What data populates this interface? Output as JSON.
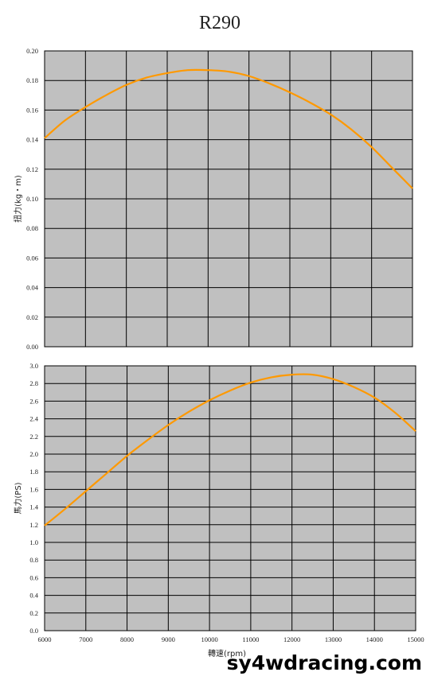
{
  "title": "R290",
  "watermark": "sy4wdracing.com",
  "colors": {
    "plot_bg": "#c0c0c0",
    "grid": "#000000",
    "line": "#ff9900"
  },
  "chart_data": [
    {
      "type": "line",
      "title": "",
      "xlabel": "",
      "ylabel": "扭力(kg・m)",
      "xlim": [
        6000,
        15000
      ],
      "ylim": [
        0,
        0.2
      ],
      "yticks": [
        "0.00",
        "0.02",
        "0.04",
        "0.06",
        "0.08",
        "0.10",
        "0.12",
        "0.14",
        "0.16",
        "0.18",
        "0.20"
      ],
      "xticks": [],
      "grid": true,
      "series": [
        {
          "x": [
            6000,
            6500,
            7000,
            7500,
            8000,
            8500,
            9000,
            9500,
            10000,
            10500,
            11000,
            11500,
            12000,
            12500,
            13000,
            13500,
            14000,
            14500,
            15000
          ],
          "y": [
            0.141,
            0.153,
            0.162,
            0.17,
            0.177,
            0.182,
            0.185,
            0.187,
            0.187,
            0.186,
            0.183,
            0.178,
            0.172,
            0.165,
            0.157,
            0.147,
            0.135,
            0.121,
            0.107
          ]
        }
      ]
    },
    {
      "type": "line",
      "title": "",
      "xlabel": "轉速(rpm)",
      "ylabel": "馬力(PS)",
      "xlim": [
        6000,
        15000
      ],
      "ylim": [
        0,
        3.0
      ],
      "yticks": [
        "0.0",
        "0.2",
        "0.4",
        "0.6",
        "0.8",
        "1.0",
        "1.2",
        "1.4",
        "1.6",
        "1.8",
        "2.0",
        "2.2",
        "2.4",
        "2.6",
        "2.8",
        "3.0"
      ],
      "xticks": [
        "6000",
        "7000",
        "8000",
        "9000",
        "10000",
        "11000",
        "12000",
        "13000",
        "14000",
        "15000"
      ],
      "grid": true,
      "series": [
        {
          "x": [
            6000,
            6500,
            7000,
            7500,
            8000,
            8500,
            9000,
            9500,
            10000,
            10500,
            11000,
            11500,
            12000,
            12500,
            13000,
            13500,
            14000,
            14500,
            15000
          ],
          "y": [
            1.19,
            1.38,
            1.58,
            1.78,
            1.98,
            2.16,
            2.33,
            2.48,
            2.61,
            2.72,
            2.81,
            2.87,
            2.9,
            2.9,
            2.85,
            2.76,
            2.64,
            2.47,
            2.26
          ]
        }
      ]
    }
  ]
}
